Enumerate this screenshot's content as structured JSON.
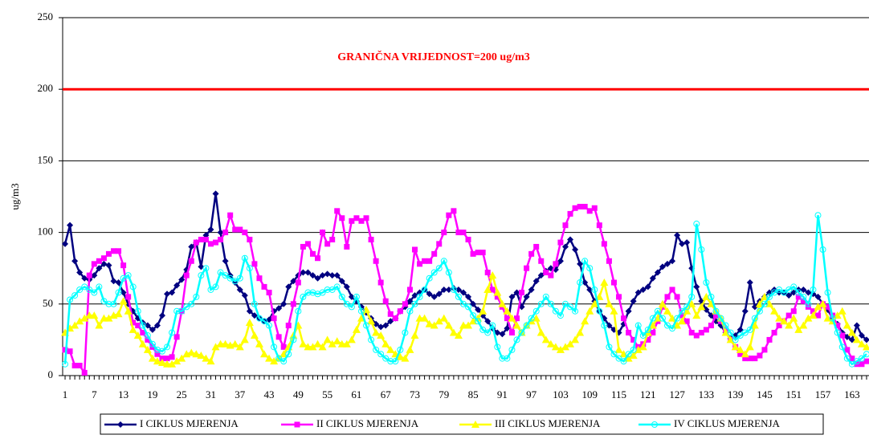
{
  "chart_data": {
    "type": "line",
    "annotation": "GRANIČNA VRIJEDNOST=200 ug/m3",
    "threshold": {
      "value": 200,
      "color": "#ff0000"
    },
    "ylabel": "ug/m3",
    "ylim": [
      0,
      250
    ],
    "yticks": [
      0,
      50,
      100,
      150,
      200,
      250
    ],
    "grid": true,
    "legend": "bottom",
    "categories": [
      1,
      null,
      null,
      null,
      null,
      null,
      7,
      null,
      null,
      null,
      null,
      null,
      13,
      null,
      null,
      null,
      null,
      null,
      19,
      null,
      null,
      null,
      null,
      null,
      25,
      null,
      null,
      null,
      null,
      null,
      31,
      null,
      null,
      null,
      null,
      null,
      37,
      null,
      null,
      null,
      null,
      null,
      43,
      null,
      null,
      null,
      null,
      null,
      49,
      null,
      null,
      null,
      null,
      null,
      55,
      null,
      null,
      null,
      null,
      null,
      61,
      null,
      null,
      null,
      null,
      null,
      67,
      null,
      null,
      null,
      null,
      null,
      73,
      null,
      null,
      null,
      null,
      null,
      79,
      null,
      null,
      null,
      null,
      null,
      85,
      null,
      null,
      null,
      null,
      null,
      91,
      null,
      null,
      null,
      null,
      null,
      97,
      null,
      null,
      null,
      null,
      null,
      103,
      null,
      null,
      null,
      null,
      null,
      109,
      null,
      null,
      null,
      null,
      null,
      115,
      null,
      null,
      null,
      null,
      null,
      121,
      null,
      null,
      null,
      null,
      null,
      127,
      null,
      null,
      null,
      null,
      null,
      133,
      null,
      null,
      null,
      null,
      null,
      139,
      null,
      null,
      null,
      null,
      null,
      145,
      null,
      null,
      null,
      null,
      null,
      151,
      null,
      null,
      null,
      null,
      null,
      157,
      null,
      null,
      null,
      null,
      null,
      163,
      null,
      null,
      null
    ],
    "series": [
      {
        "name": "I CIKLUS MJERENJA",
        "color": "#000080",
        "marker": "diamond",
        "values": [
          92,
          105,
          80,
          72,
          68,
          67,
          70,
          75,
          78,
          77,
          66,
          65,
          58,
          50,
          45,
          40,
          37,
          35,
          32,
          35,
          42,
          57,
          58,
          63,
          67,
          74,
          90,
          93,
          76,
          98,
          102,
          127,
          100,
          80,
          70,
          65,
          60,
          56,
          45,
          42,
          40,
          38,
          39,
          45,
          47,
          50,
          62,
          66,
          70,
          72,
          72,
          70,
          68,
          70,
          71,
          70,
          70,
          66,
          62,
          55,
          52,
          48,
          44,
          40,
          36,
          34,
          35,
          38,
          40,
          45,
          48,
          52,
          56,
          58,
          60,
          57,
          55,
          57,
          60,
          60,
          61,
          60,
          58,
          55,
          50,
          46,
          42,
          38,
          33,
          30,
          29,
          33,
          55,
          58,
          48,
          55,
          60,
          66,
          70,
          73,
          75,
          74,
          80,
          90,
          95,
          88,
          78,
          65,
          60,
          52,
          45,
          40,
          35,
          32,
          30,
          36,
          45,
          52,
          58,
          60,
          62,
          68,
          72,
          76,
          78,
          80,
          98,
          92,
          93,
          75,
          62,
          52,
          46,
          42,
          38,
          35,
          30,
          26,
          28,
          32,
          45,
          65,
          48,
          52,
          55,
          58,
          60,
          58,
          58,
          56,
          58,
          60,
          60,
          58,
          57,
          55,
          50,
          46,
          40,
          36,
          30,
          27,
          25,
          35,
          28,
          25
        ]
      },
      {
        "name": "II CIKLUS MJERENJA",
        "color": "#ff00ff",
        "marker": "square",
        "values": [
          18,
          17,
          7,
          7,
          2,
          70,
          78,
          80,
          82,
          85,
          87,
          87,
          77,
          55,
          37,
          35,
          30,
          25,
          20,
          15,
          12,
          12,
          13,
          27,
          45,
          70,
          80,
          93,
          95,
          95,
          92,
          93,
          95,
          100,
          112,
          102,
          102,
          100,
          95,
          78,
          68,
          62,
          58,
          40,
          27,
          20,
          35,
          50,
          65,
          90,
          92,
          85,
          82,
          100,
          92,
          95,
          115,
          110,
          90,
          108,
          110,
          108,
          110,
          95,
          80,
          65,
          52,
          43,
          40,
          45,
          50,
          60,
          88,
          78,
          80,
          80,
          85,
          92,
          100,
          112,
          115,
          100,
          100,
          95,
          85,
          86,
          86,
          72,
          60,
          55,
          48,
          40,
          30,
          40,
          58,
          75,
          85,
          90,
          80,
          72,
          70,
          78,
          93,
          105,
          113,
          117,
          118,
          118,
          115,
          117,
          105,
          92,
          80,
          65,
          55,
          40,
          30,
          25,
          20,
          22,
          25,
          30,
          38,
          48,
          55,
          60,
          55,
          42,
          38,
          30,
          28,
          30,
          32,
          35,
          42,
          38,
          32,
          25,
          20,
          15,
          12,
          12,
          12,
          14,
          18,
          25,
          30,
          35,
          38,
          42,
          45,
          55,
          52,
          48,
          45,
          42,
          50,
          48,
          42,
          35,
          28,
          18,
          12,
          8,
          8,
          10
        ]
      },
      {
        "name": "III CIKLUS MJERENJA",
        "color": "#ffff00",
        "marker": "triangle",
        "values": [
          30,
          33,
          35,
          38,
          40,
          42,
          42,
          35,
          40,
          40,
          42,
          43,
          52,
          45,
          32,
          28,
          22,
          18,
          12,
          10,
          9,
          8,
          8,
          10,
          12,
          15,
          16,
          15,
          14,
          12,
          10,
          20,
          22,
          22,
          21,
          22,
          20,
          25,
          37,
          28,
          22,
          15,
          12,
          10,
          12,
          15,
          20,
          28,
          35,
          22,
          20,
          20,
          22,
          20,
          25,
          22,
          24,
          22,
          22,
          25,
          32,
          40,
          46,
          38,
          30,
          28,
          22,
          18,
          15,
          13,
          12,
          18,
          28,
          40,
          40,
          36,
          35,
          38,
          40,
          35,
          30,
          28,
          35,
          35,
          38,
          40,
          45,
          60,
          70,
          58,
          50,
          45,
          40,
          35,
          30,
          35,
          38,
          40,
          30,
          25,
          22,
          20,
          18,
          20,
          22,
          25,
          30,
          38,
          45,
          50,
          55,
          65,
          50,
          45,
          18,
          15,
          12,
          14,
          18,
          20,
          30,
          35,
          40,
          50,
          45,
          40,
          35,
          38,
          45,
          50,
          42,
          48,
          55,
          50,
          45,
          40,
          30,
          25,
          20,
          18,
          15,
          20,
          35,
          50,
          55,
          50,
          45,
          40,
          38,
          35,
          40,
          32,
          35,
          40,
          42,
          48,
          50,
          40,
          38,
          42,
          45,
          35,
          30,
          25,
          22,
          20
        ]
      },
      {
        "name": "IV CIKLUS MJERENJA",
        "color": "#00ffff",
        "marker": "circle",
        "values": [
          8,
          53,
          56,
          60,
          62,
          60,
          58,
          62,
          52,
          50,
          50,
          58,
          68,
          70,
          62,
          45,
          35,
          28,
          22,
          18,
          17,
          20,
          30,
          45,
          45,
          48,
          50,
          55,
          70,
          75,
          60,
          62,
          72,
          70,
          68,
          66,
          68,
          82,
          75,
          50,
          40,
          38,
          35,
          20,
          12,
          10,
          15,
          25,
          45,
          55,
          58,
          58,
          57,
          58,
          60,
          60,
          62,
          55,
          50,
          48,
          55,
          45,
          35,
          25,
          18,
          15,
          12,
          10,
          10,
          18,
          30,
          45,
          50,
          55,
          60,
          68,
          72,
          75,
          80,
          72,
          60,
          55,
          50,
          48,
          42,
          38,
          32,
          30,
          35,
          20,
          12,
          12,
          18,
          25,
          30,
          35,
          40,
          45,
          50,
          55,
          50,
          45,
          42,
          50,
          48,
          45,
          65,
          80,
          75,
          60,
          45,
          35,
          20,
          15,
          12,
          10,
          15,
          18,
          35,
          28,
          32,
          40,
          45,
          40,
          35,
          33,
          40,
          45,
          48,
          55,
          106,
          88,
          65,
          55,
          45,
          40,
          35,
          30,
          25,
          28,
          30,
          32,
          40,
          45,
          50,
          55,
          58,
          60,
          58,
          60,
          62,
          58,
          55,
          50,
          60,
          112,
          88,
          58,
          40,
          30,
          20,
          12,
          8,
          10,
          12,
          15
        ]
      }
    ]
  }
}
